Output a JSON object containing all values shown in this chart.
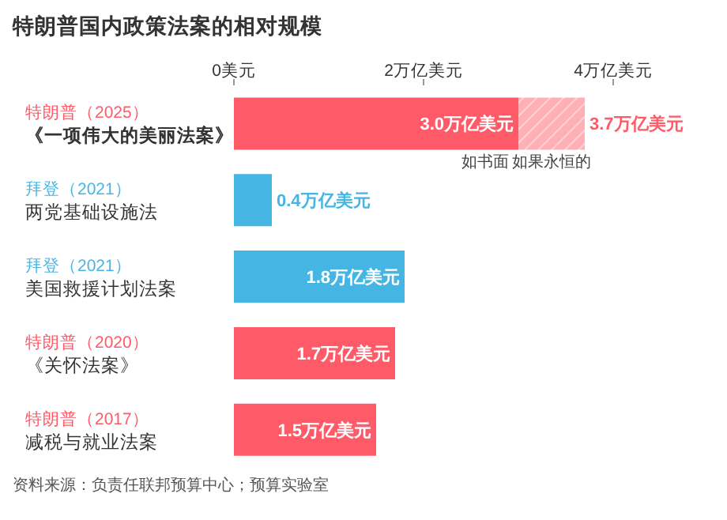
{
  "chart_data": {
    "type": "bar",
    "orientation": "horizontal",
    "stacked": true,
    "title": "特朗普国内政策法案的相对规模",
    "categories": [
      "特朗普（2025）《一项伟大的美丽法案》",
      "拜登（2021）两党基础设施法",
      "拜登（2021）美国救援计划法案",
      "特朗普（2020）《关怀法案》",
      "特朗普（2017）减税与就业法案"
    ],
    "totals": [
      "3.7万亿美元",
      null,
      null,
      null,
      null
    ],
    "series": [
      {
        "name": "如书面",
        "color": "#ff5a67",
        "colors": [
          "#ff5a67",
          "#45b6e4",
          "#45b6e4",
          "#ff5a67",
          "#ff5a67"
        ],
        "values": [
          3.0,
          0.4,
          1.8,
          1.7,
          1.5
        ],
        "value_labels": [
          "3.0万亿美元",
          "0.4万亿美元",
          "1.8万亿美元",
          "1.7万亿美元",
          "1.5万亿美元"
        ]
      },
      {
        "name": "如果永恒的",
        "color": "#ffb0b7",
        "values": [
          0.7,
          null,
          null,
          null,
          null
        ]
      }
    ],
    "xlim": [
      0,
      4
    ],
    "xticks": [
      {
        "value": 0,
        "label": "0美元"
      },
      {
        "value": 2,
        "label": "2万亿美元"
      },
      {
        "value": 4,
        "label": "4万亿美元"
      }
    ],
    "grid": false,
    "legend": false,
    "annotations": [
      "资料来源：负责任联邦预算中心；预算实验室"
    ]
  }
}
